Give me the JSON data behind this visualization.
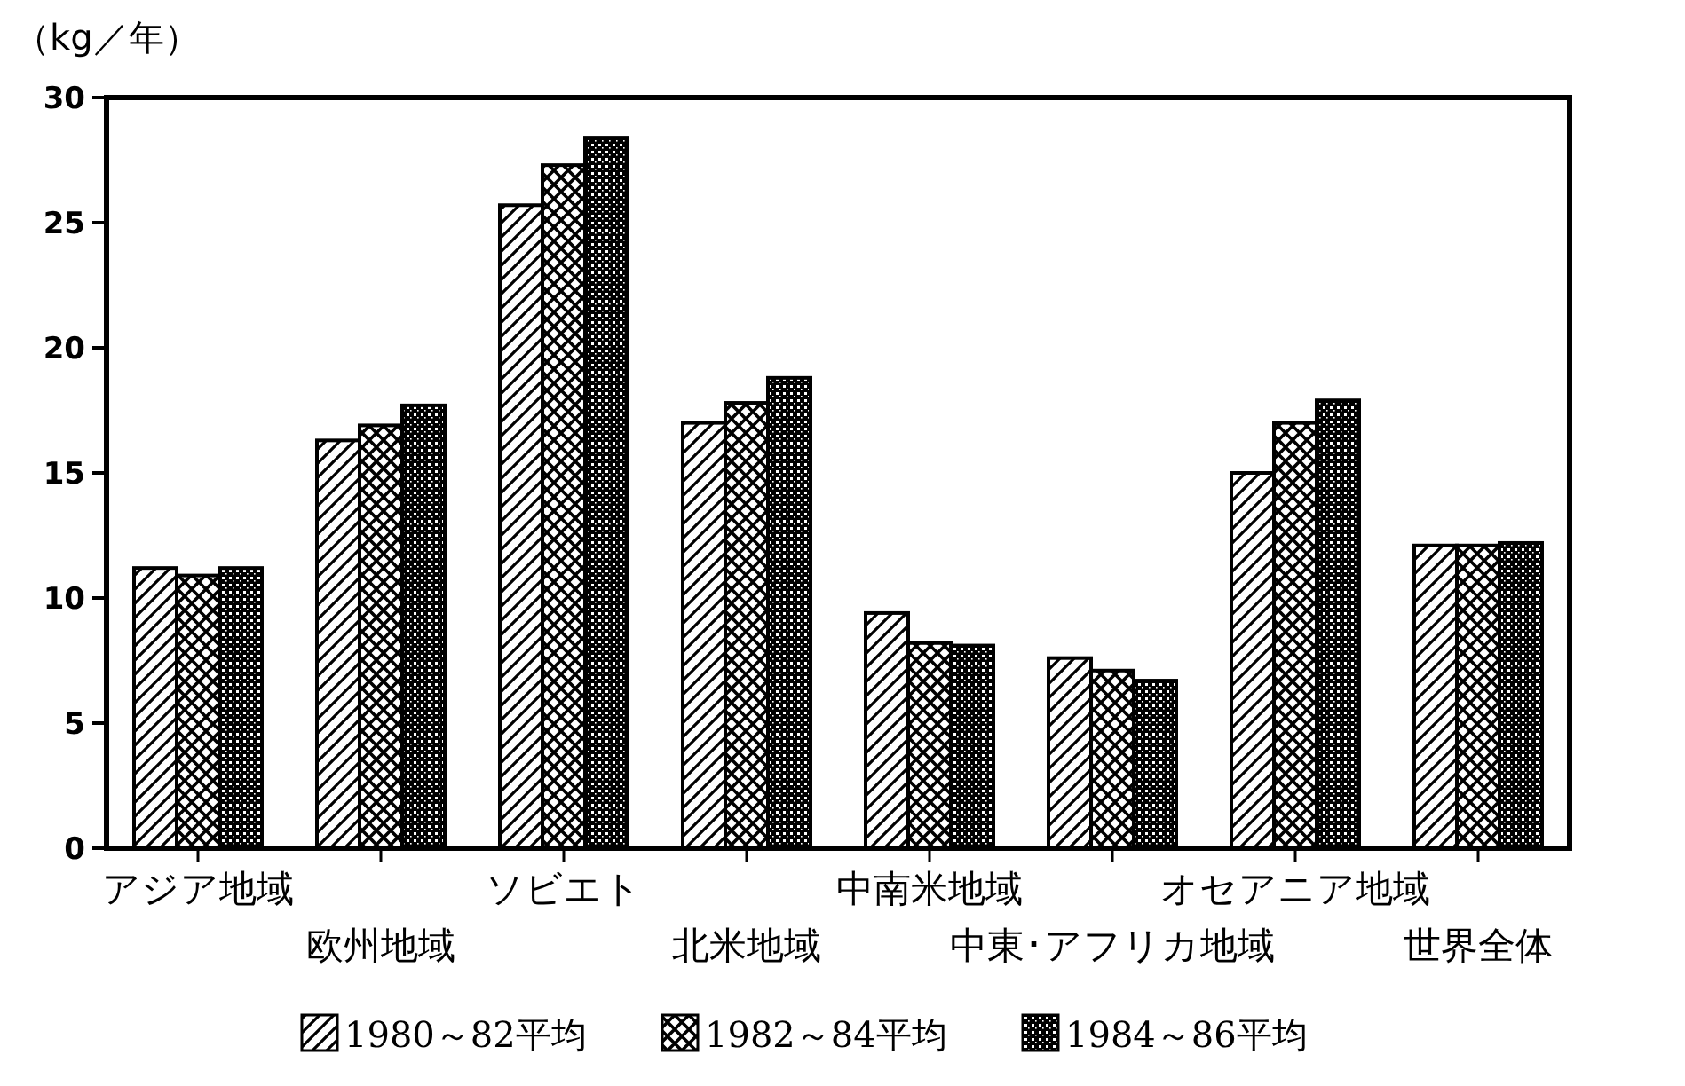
{
  "chart_data": {
    "type": "bar",
    "ylabel": "（kg／年）",
    "categories": [
      "アジア地域",
      "欧州地域",
      "ソビエト",
      "北米地域",
      "中南米地域",
      "中東･アフリカ地域",
      "オセアニア地域",
      "世界全体"
    ],
    "series": [
      {
        "name": "1980～82平均",
        "color": "#000000",
        "values": [
          11.2,
          16.3,
          25.7,
          17.0,
          9.4,
          7.6,
          15.0,
          12.1
        ]
      },
      {
        "name": "1982～84平均",
        "color": "#000000",
        "values": [
          10.9,
          16.9,
          27.3,
          17.8,
          8.2,
          7.1,
          17.0,
          12.1
        ]
      },
      {
        "name": "1984～86平均",
        "color": "#000000",
        "values": [
          11.2,
          17.7,
          28.4,
          18.8,
          8.1,
          6.7,
          17.9,
          12.2
        ]
      }
    ],
    "ylim": [
      0,
      30
    ],
    "yticks": [
      0,
      5,
      10,
      15,
      20,
      25,
      30
    ],
    "grid": false,
    "legend": "bottom"
  }
}
